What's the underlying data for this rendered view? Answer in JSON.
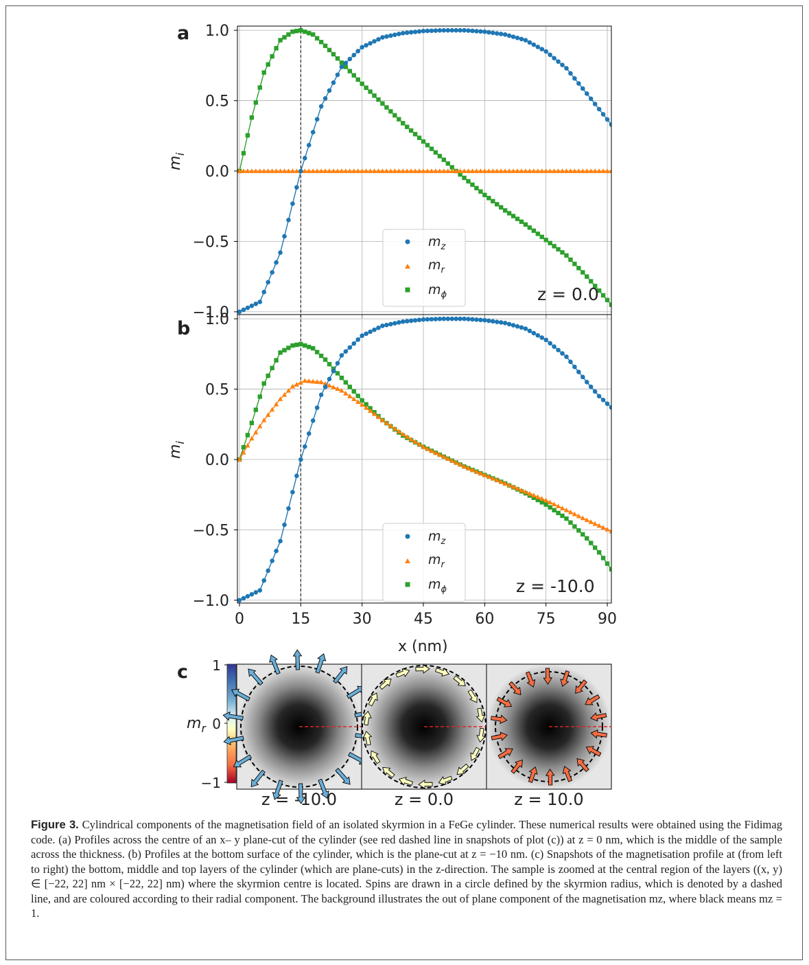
{
  "figure": {
    "panel_labels": {
      "a": "a",
      "b": "b",
      "c": "c"
    },
    "colors": {
      "mz": "#1f77b4",
      "mr": "#ff7f0e",
      "mphi": "#2ca02c"
    },
    "legend": {
      "mz_base": "m",
      "mz_sub": "z",
      "mr_base": "m",
      "mr_sub": "r",
      "mphi_base": "m",
      "mphi_sub": "ϕ"
    },
    "ylabel_base": "m",
    "ylabel_sub": "i",
    "xlabel": "x (nm)",
    "annotation_a": "z = 0.0",
    "annotation_b": "z = -10.0",
    "snap_labels": [
      "z = -10.0",
      "z = 0.0",
      "z = 10.0"
    ],
    "colorbar": {
      "label_base": "m",
      "label_sub": "r",
      "ticks": [
        "1",
        "0",
        "−1"
      ]
    }
  },
  "chart_data": [
    {
      "type": "line",
      "panel": "a",
      "xlabel": "x (nm)",
      "ylabel": "m_i",
      "xlim": [
        -0.5,
        91
      ],
      "ylim": [
        -1.02,
        1.03
      ],
      "xticks": [
        0,
        15,
        30,
        45,
        60,
        75,
        90
      ],
      "yticks": [
        -1.0,
        -0.5,
        0.0,
        0.5,
        1.0
      ],
      "ytick_labels": [
        "−1.0",
        "−0.5",
        "0.0",
        "0.5",
        "1.0"
      ],
      "grid": true,
      "legend": "lower-center",
      "vline_x": 15,
      "series": [
        {
          "name": "m_z",
          "marker": "circle",
          "x": [
            0,
            5,
            10,
            15,
            20,
            25,
            30,
            35,
            40,
            45,
            50,
            55,
            60,
            65,
            70,
            75,
            80,
            85,
            88,
            91
          ],
          "values": [
            -1.0,
            -0.93,
            -0.58,
            0.0,
            0.46,
            0.74,
            0.88,
            0.95,
            0.98,
            0.995,
            1.0,
            1.0,
            0.99,
            0.97,
            0.93,
            0.85,
            0.73,
            0.55,
            0.44,
            0.33
          ]
        },
        {
          "name": "m_r",
          "marker": "triangle",
          "x": [
            0,
            91
          ],
          "values": [
            0.0,
            0.0
          ]
        },
        {
          "name": "m_phi",
          "marker": "square",
          "x": [
            0,
            3,
            6,
            10,
            13,
            15,
            18,
            21,
            25,
            30,
            35,
            40,
            45,
            50,
            53,
            60,
            65,
            70,
            75,
            80,
            85,
            88,
            91
          ],
          "values": [
            0.0,
            0.38,
            0.7,
            0.93,
            0.99,
            1.0,
            0.97,
            0.89,
            0.77,
            0.62,
            0.48,
            0.34,
            0.21,
            0.08,
            0.0,
            -0.17,
            -0.28,
            -0.38,
            -0.49,
            -0.6,
            -0.75,
            -0.85,
            -0.95
          ]
        }
      ]
    },
    {
      "type": "line",
      "panel": "b",
      "xlabel": "x (nm)",
      "ylabel": "m_i",
      "xlim": [
        -0.5,
        91
      ],
      "ylim": [
        -1.02,
        1.03
      ],
      "xticks": [
        0,
        15,
        30,
        45,
        60,
        75,
        90
      ],
      "yticks": [
        -1.0,
        -0.5,
        0.0,
        0.5,
        1.0
      ],
      "ytick_labels": [
        "−1.0",
        "−0.5",
        "0.0",
        "0.5",
        "1.0"
      ],
      "grid": true,
      "legend": "lower-center",
      "vline_x": 15,
      "series": [
        {
          "name": "m_z",
          "marker": "circle",
          "x": [
            0,
            5,
            10,
            15,
            20,
            25,
            30,
            35,
            40,
            45,
            50,
            55,
            60,
            65,
            70,
            75,
            80,
            85,
            88,
            91
          ],
          "values": [
            -1.0,
            -0.93,
            -0.58,
            0.0,
            0.46,
            0.74,
            0.88,
            0.95,
            0.98,
            0.995,
            1.0,
            1.0,
            0.99,
            0.97,
            0.93,
            0.85,
            0.73,
            0.55,
            0.45,
            0.37
          ]
        },
        {
          "name": "m_r",
          "marker": "triangle",
          "x": [
            0,
            3,
            6,
            10,
            13,
            16,
            20,
            25,
            30,
            35,
            40,
            45,
            50,
            55,
            60,
            65,
            70,
            75,
            80,
            85,
            88,
            91
          ],
          "values": [
            0.0,
            0.15,
            0.28,
            0.43,
            0.52,
            0.56,
            0.55,
            0.49,
            0.39,
            0.28,
            0.18,
            0.09,
            0.02,
            -0.05,
            -0.11,
            -0.17,
            -0.23,
            -0.29,
            -0.36,
            -0.43,
            -0.47,
            -0.51
          ]
        },
        {
          "name": "m_phi",
          "marker": "square",
          "x": [
            0,
            3,
            6,
            10,
            13,
            15,
            18,
            21,
            25,
            30,
            35,
            40,
            45,
            50,
            55,
            60,
            65,
            70,
            75,
            80,
            85,
            88,
            91
          ],
          "values": [
            0.0,
            0.26,
            0.54,
            0.76,
            0.81,
            0.82,
            0.79,
            0.71,
            0.58,
            0.42,
            0.28,
            0.17,
            0.09,
            0.02,
            -0.05,
            -0.11,
            -0.17,
            -0.24,
            -0.32,
            -0.42,
            -0.56,
            -0.66,
            -0.78
          ]
        }
      ]
    }
  ],
  "caption": {
    "label": "Figure 3.",
    "text": "Cylindrical components of the magnetisation field of an isolated skyrmion in a FeGe cylinder. These numerical results were obtained using the Fidimag code. (a) Profiles across the centre of an x– y plane-cut of the cylinder (see red dashed line in snapshots of plot (c)) at z = 0 nm, which is the middle of the sample across the thickness. (b) Profiles at the bottom surface of the cylinder, which is the plane-cut at z = −10 nm. (c) Snapshots of the magnetisation profile at (from left to right) the bottom, middle and top layers of the cylinder (which are plane-cuts) in the z-direction. The sample is zoomed at the central region of the layers ((x, y) ∈ [−22, 22] nm × [−22, 22] nm) where the skyrmion centre is located. Spins are drawn in a circle defined by the skyrmion radius, which is denoted by a dashed line, and are coloured according to their radial component. The background illustrates the out of plane component of the magnetisation mz, where black means mz = 1."
  }
}
